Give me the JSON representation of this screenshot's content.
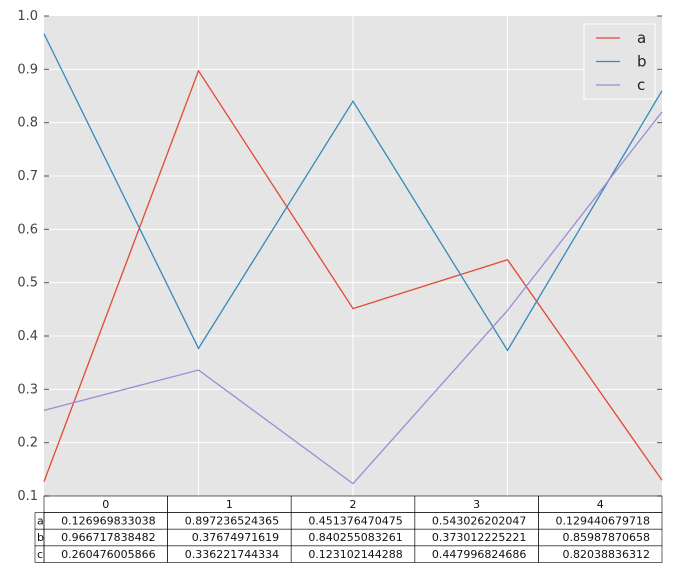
{
  "chart_data": {
    "type": "line",
    "x": [
      0,
      1,
      2,
      3,
      4
    ],
    "ylim": [
      0.1,
      1.0
    ],
    "yticks": [
      "0.1",
      "0.2",
      "0.3",
      "0.4",
      "0.5",
      "0.6",
      "0.7",
      "0.8",
      "0.9",
      "1.0"
    ],
    "grid": true,
    "legend_position": "top-right",
    "colors": {
      "plot_bg": "#e5e5e5",
      "grid": "#ffffff"
    },
    "series": [
      {
        "name": "a",
        "color": "#e24a33",
        "values": [
          0.126969833038,
          0.897236524365,
          0.451376470475,
          0.543026202047,
          0.129440679718
        ]
      },
      {
        "name": "b",
        "color": "#348abd",
        "values": [
          0.966717838482,
          0.37674971619,
          0.840255083261,
          0.373012225221,
          0.85987870658
        ]
      },
      {
        "name": "c",
        "color": "#988ed5",
        "values": [
          0.260476005866,
          0.336221744334,
          0.123102144288,
          0.447996824686,
          0.82038836312
        ]
      }
    ],
    "table": {
      "col_labels": [
        "0",
        "1",
        "2",
        "3",
        "4"
      ],
      "rows": [
        {
          "label": "a",
          "cells": [
            "0.126969833038",
            "0.897236524365",
            "0.451376470475",
            "0.543026202047",
            "0.129440679718"
          ]
        },
        {
          "label": "b",
          "cells": [
            "0.966717838482",
            "0.37674971619",
            "0.840255083261",
            "0.373012225221",
            "0.85987870658"
          ]
        },
        {
          "label": "c",
          "cells": [
            "0.260476005866",
            "0.336221744334",
            "0.123102144288",
            "0.447996824686",
            "0.82038836312"
          ]
        }
      ]
    }
  }
}
